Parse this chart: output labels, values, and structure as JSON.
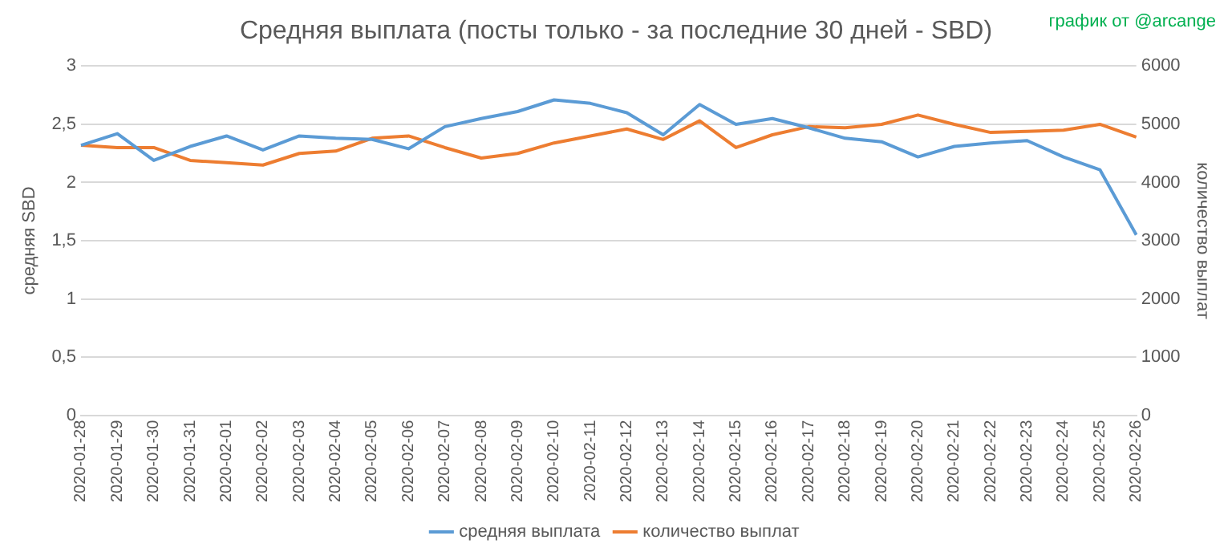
{
  "chart_data": {
    "type": "line",
    "title": "Средняя выплата (посты только - за последние 30 дней - SBD)",
    "ylabel": "средняя SBD",
    "y2label": "количество выплат",
    "annotations": [
      "график от @arcange"
    ],
    "categories": [
      "2020-01-28",
      "2020-01-29",
      "2020-01-30",
      "2020-01-31",
      "2020-02-01",
      "2020-02-02",
      "2020-02-03",
      "2020-02-04",
      "2020-02-05",
      "2020-02-06",
      "2020-02-07",
      "2020-02-08",
      "2020-02-09",
      "2020-02-10",
      "2020-02-11",
      "2020-02-12",
      "2020-02-13",
      "2020-02-14",
      "2020-02-15",
      "2020-02-16",
      "2020-02-17",
      "2020-02-18",
      "2020-02-19",
      "2020-02-20",
      "2020-02-21",
      "2020-02-22",
      "2020-02-23",
      "2020-02-24",
      "2020-02-25",
      "2020-02-26"
    ],
    "series": [
      {
        "name": "средняя выплата",
        "color": "#5b9bd5",
        "values": [
          2.32,
          2.42,
          2.19,
          2.31,
          2.4,
          2.28,
          2.4,
          2.38,
          2.37,
          2.29,
          2.48,
          2.55,
          2.61,
          2.71,
          2.68,
          2.6,
          2.41,
          2.67,
          2.5,
          2.55,
          2.47,
          2.38,
          2.35,
          2.22,
          2.31,
          2.34,
          2.36,
          2.22,
          2.11,
          1.55
        ]
      },
      {
        "name": "количество выплат",
        "color": "#ed7d31",
        "axis": "y2",
        "values": [
          4640,
          4600,
          4600,
          4380,
          4340,
          4300,
          4500,
          4540,
          4760,
          4800,
          4600,
          4420,
          4500,
          4680,
          4800,
          4920,
          4740,
          5060,
          4600,
          4820,
          4960,
          4940,
          5000,
          5160,
          5000,
          4860,
          4880,
          4900,
          5000,
          4780
        ]
      }
    ],
    "ylim": [
      0,
      3
    ],
    "yticks": [
      0,
      {
        "value": 0.5,
        "label": "0,5"
      },
      1,
      {
        "value": 1.5,
        "label": "1,5"
      },
      2,
      {
        "value": 2.5,
        "label": "2,5"
      },
      3
    ],
    "y2lim": [
      0,
      6000
    ],
    "y2ticks": [
      0,
      1000,
      2000,
      3000,
      4000,
      5000,
      6000
    ],
    "grid": "y",
    "legend": "bottom",
    "marker": "none",
    "line_style": "solid"
  }
}
